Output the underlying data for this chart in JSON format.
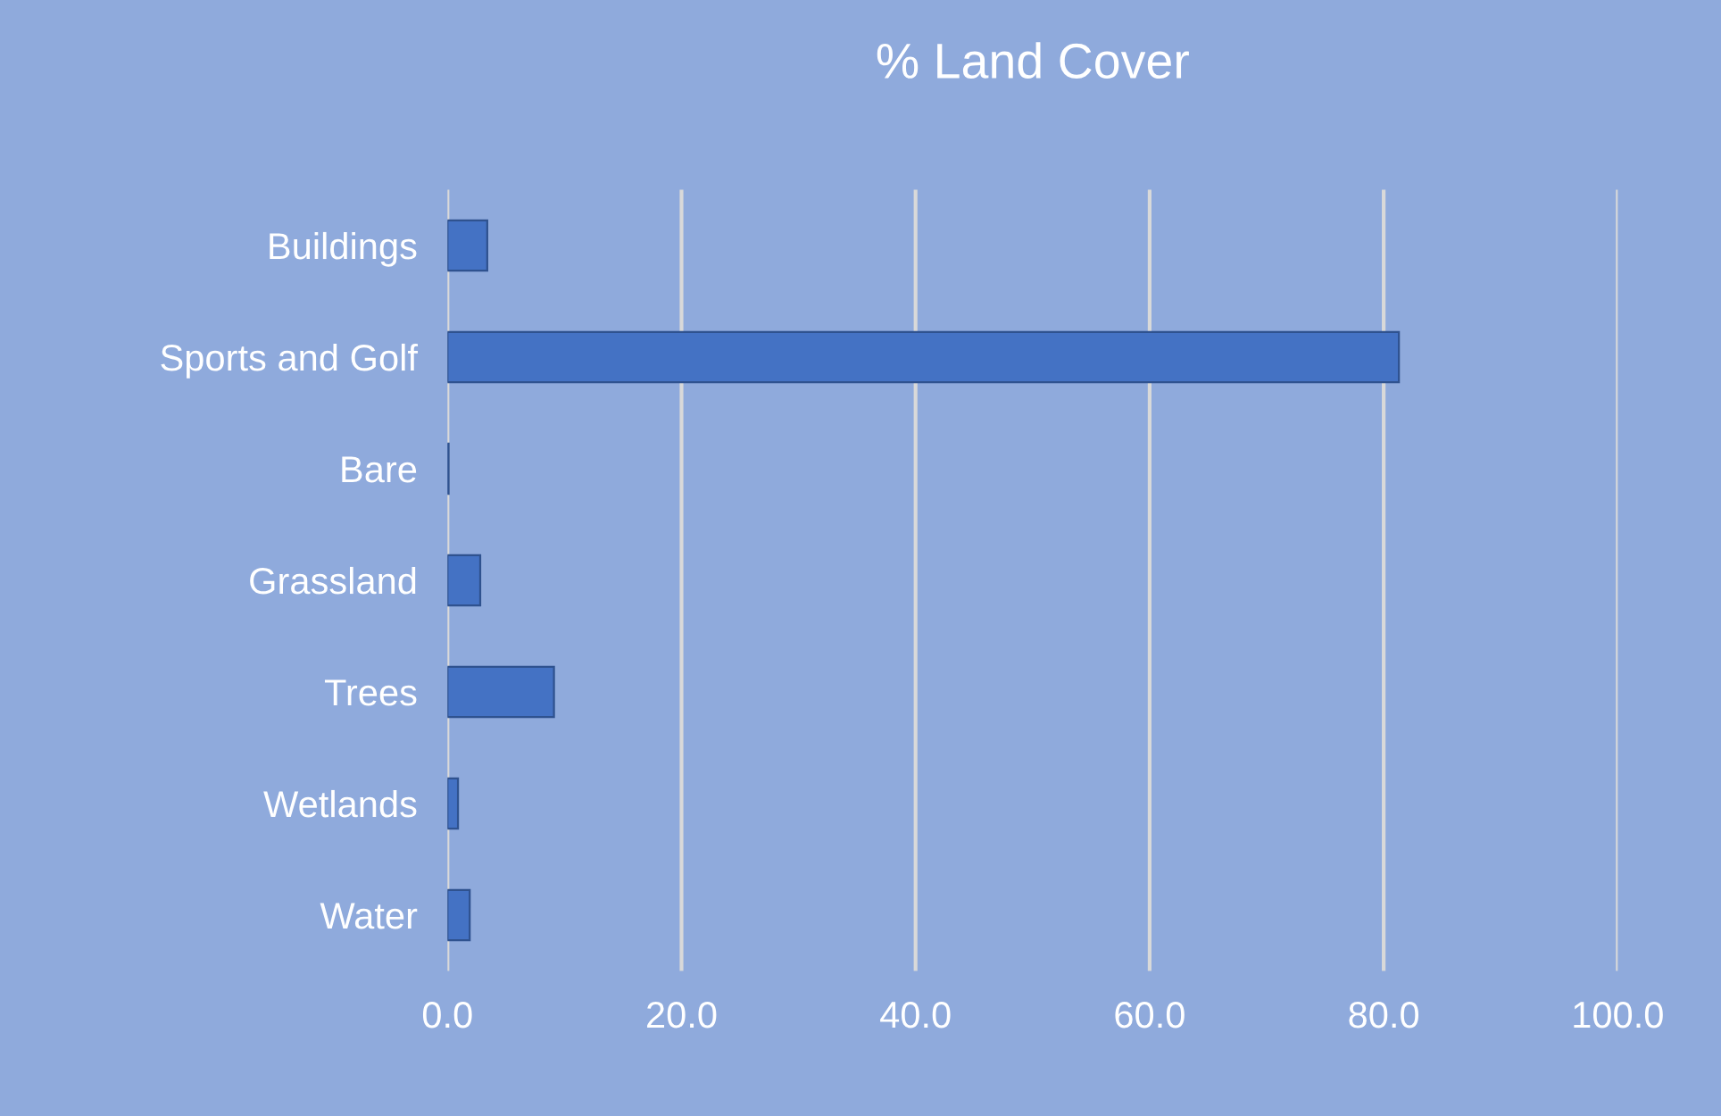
{
  "chart_data": {
    "type": "bar",
    "orientation": "horizontal",
    "title": "% Land Cover",
    "categories": [
      "Buildings",
      "Sports and Golf",
      "Bare",
      "Grassland",
      "Trees",
      "Wetlands",
      "Water"
    ],
    "values": [
      3.4,
      81.3,
      0.1,
      2.8,
      9.1,
      0.9,
      1.9
    ],
    "color": "#4472c4",
    "xlim": [
      0,
      100
    ],
    "xticks": [
      {
        "value": 0,
        "label": "0.0"
      },
      {
        "value": 20,
        "label": "20.0"
      },
      {
        "value": 40,
        "label": "40.0"
      },
      {
        "value": 60,
        "label": "60.0"
      },
      {
        "value": 80,
        "label": "80.0"
      },
      {
        "value": 100,
        "label": "100.0"
      }
    ],
    "grid": "x",
    "legend": false
  }
}
